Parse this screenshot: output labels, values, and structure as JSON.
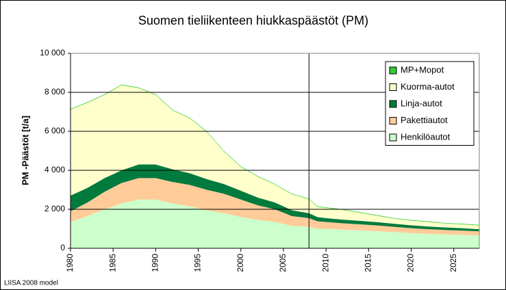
{
  "chart_data": {
    "type": "stacked-area",
    "title": "Suomen tieliikenteen hiukkaspäästöt (PM)",
    "y_label": "PM -Päästöt [t/a]",
    "footnote": "LIISA 2008 model",
    "x": [
      1980,
      1982,
      1984,
      1986,
      1988,
      1990,
      1992,
      1994,
      1996,
      1998,
      2000,
      2002,
      2004,
      2006,
      2008,
      2009,
      2010,
      2012,
      2014,
      2016,
      2018,
      2020,
      2022,
      2024,
      2026,
      2028
    ],
    "series": [
      {
        "name": "Henkilöautot",
        "color": "#ccffcc",
        "values": [
          1350,
          1650,
          2000,
          2300,
          2500,
          2500,
          2300,
          2150,
          1950,
          1800,
          1600,
          1450,
          1350,
          1150,
          1100,
          1000,
          1000,
          950,
          920,
          880,
          830,
          780,
          740,
          710,
          690,
          660
        ]
      },
      {
        "name": "Pakettiautot",
        "color": "#ffcc99",
        "values": [
          550,
          700,
          900,
          1050,
          1100,
          1100,
          1100,
          1100,
          1050,
          1000,
          900,
          750,
          650,
          500,
          450,
          380,
          350,
          330,
          310,
          290,
          270,
          250,
          240,
          230,
          220,
          210
        ]
      },
      {
        "name": "Linja-autot",
        "color": "#007a3d",
        "values": [
          800,
          750,
          700,
          650,
          700,
          700,
          650,
          600,
          550,
          500,
          450,
          400,
          350,
          300,
          250,
          220,
          200,
          190,
          180,
          170,
          160,
          150,
          140,
          130,
          120,
          110
        ]
      },
      {
        "name": "Kuorma-autot",
        "color": "#ffffcc",
        "values": [
          4420,
          4370,
          4270,
          4370,
          3920,
          3570,
          3020,
          2820,
          2420,
          1670,
          1220,
          1070,
          920,
          820,
          720,
          520,
          520,
          500,
          410,
          330,
          260,
          240,
          230,
          200,
          200,
          190
        ]
      },
      {
        "name": "MP+Mopot",
        "color": "#33cc33",
        "values": [
          30,
          30,
          30,
          30,
          30,
          30,
          30,
          30,
          30,
          30,
          30,
          30,
          30,
          30,
          30,
          30,
          30,
          30,
          30,
          30,
          30,
          30,
          30,
          30,
          30,
          30
        ]
      }
    ],
    "xlim": [
      1980,
      2028
    ],
    "xticks": [
      1980,
      1985,
      1990,
      1995,
      2000,
      2005,
      2010,
      2015,
      2020,
      2025
    ],
    "ylim": [
      0,
      10000
    ],
    "yticks": [
      0,
      {
        "value": 2000,
        "label": "2 000"
      },
      {
        "value": 4000,
        "label": "4 000"
      },
      {
        "value": 6000,
        "label": "6 000"
      },
      {
        "value": 8000,
        "label": "8 000"
      },
      {
        "value": 10000,
        "label": "10 000"
      }
    ],
    "vline": 2008,
    "grid": true,
    "legend": "upper right"
  }
}
